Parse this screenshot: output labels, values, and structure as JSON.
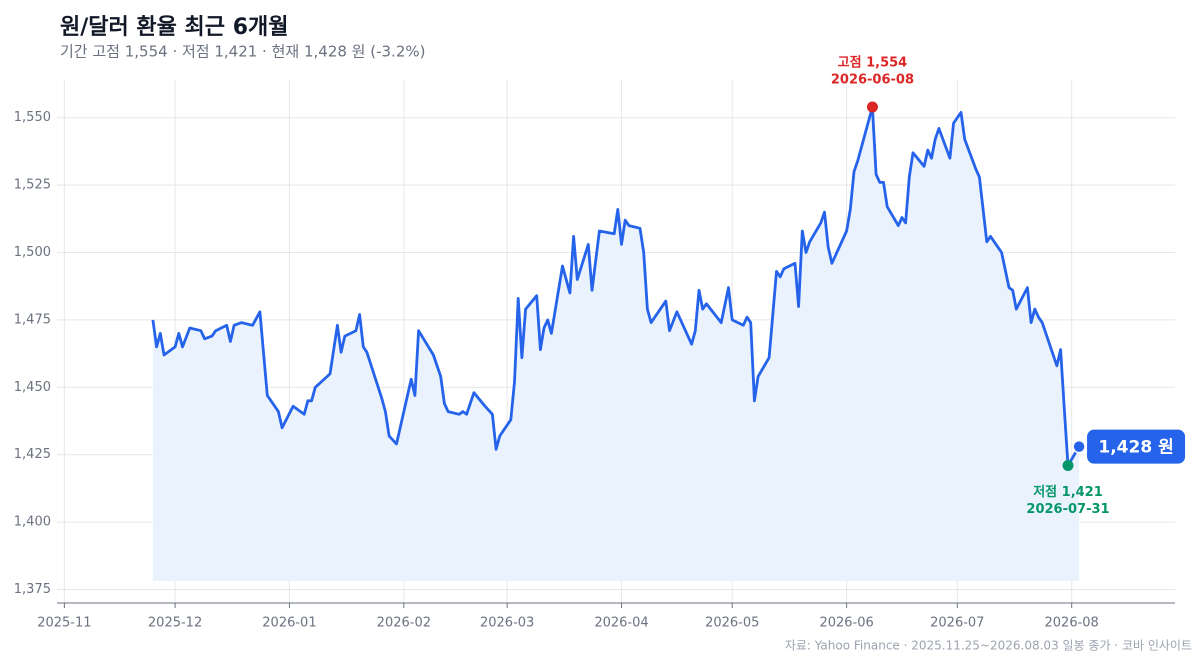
{
  "chart_data": {
    "type": "line",
    "title": "원/달러 환율 최근 6개월",
    "subtitle": "기간 고점 1,554 · 저점 1,421 · 현재 1,428 원 (-3.2%)",
    "source": "자료: Yahoo Finance · 2025.11.25~2026.08.03 일봉 종가 · 코바 인사이트",
    "color": "#2563eb",
    "fill_color": "#eaf2fd",
    "grid": true,
    "xlim": [
      "2025-10-30",
      "2026-08-29"
    ],
    "xticks": [
      "2025-11",
      "2025-12",
      "2026-01",
      "2026-02",
      "2026-03",
      "2026-04",
      "2026-05",
      "2026-06",
      "2026-07",
      "2026-08"
    ],
    "ylim": [
      1370,
      1564
    ],
    "yticks": [
      {
        "value": 1375,
        "label": "1,375"
      },
      {
        "value": 1400,
        "label": "1,400"
      },
      {
        "value": 1425,
        "label": "1,425"
      },
      {
        "value": 1450,
        "label": "1,450"
      },
      {
        "value": 1475,
        "label": "1,475"
      },
      {
        "value": 1500,
        "label": "1,500"
      },
      {
        "value": 1525,
        "label": "1,525"
      },
      {
        "value": 1550,
        "label": "1,550"
      }
    ],
    "x": [
      "2025-11-25",
      "2025-11-26",
      "2025-11-27",
      "2025-11-28",
      "2025-12-01",
      "2025-12-02",
      "2025-12-03",
      "2025-12-05",
      "2025-12-08",
      "2025-12-09",
      "2025-12-11",
      "2025-12-12",
      "2025-12-15",
      "2025-12-16",
      "2025-12-17",
      "2025-12-19",
      "2025-12-22",
      "2025-12-24",
      "2025-12-26",
      "2025-12-29",
      "2025-12-30",
      "2026-01-02",
      "2026-01-05",
      "2026-01-06",
      "2026-01-07",
      "2026-01-08",
      "2026-01-12",
      "2026-01-14",
      "2026-01-15",
      "2026-01-16",
      "2026-01-19",
      "2026-01-20",
      "2026-01-21",
      "2026-01-22",
      "2026-01-26",
      "2026-01-27",
      "2026-01-28",
      "2026-01-30",
      "2026-02-02",
      "2026-02-03",
      "2026-02-04",
      "2026-02-05",
      "2026-02-09",
      "2026-02-11",
      "2026-02-12",
      "2026-02-13",
      "2026-02-16",
      "2026-02-17",
      "2026-02-18",
      "2026-02-20",
      "2026-02-23",
      "2026-02-25",
      "2026-02-26",
      "2026-02-27",
      "2026-03-02",
      "2026-03-03",
      "2026-03-04",
      "2026-03-05",
      "2026-03-06",
      "2026-03-09",
      "2026-03-10",
      "2026-03-11",
      "2026-03-12",
      "2026-03-13",
      "2026-03-16",
      "2026-03-17",
      "2026-03-18",
      "2026-03-19",
      "2026-03-20",
      "2026-03-23",
      "2026-03-24",
      "2026-03-25",
      "2026-03-26",
      "2026-03-30",
      "2026-03-31",
      "2026-04-01",
      "2026-04-02",
      "2026-04-03",
      "2026-04-06",
      "2026-04-07",
      "2026-04-08",
      "2026-04-09",
      "2026-04-13",
      "2026-04-14",
      "2026-04-16",
      "2026-04-20",
      "2026-04-21",
      "2026-04-22",
      "2026-04-23",
      "2026-04-24",
      "2026-04-28",
      "2026-04-30",
      "2026-05-01",
      "2026-05-04",
      "2026-05-05",
      "2026-05-06",
      "2026-05-07",
      "2026-05-08",
      "2026-05-11",
      "2026-05-13",
      "2026-05-14",
      "2026-05-15",
      "2026-05-18",
      "2026-05-19",
      "2026-05-20",
      "2026-05-21",
      "2026-05-22",
      "2026-05-25",
      "2026-05-26",
      "2026-05-27",
      "2026-05-28",
      "2026-06-01",
      "2026-06-02",
      "2026-06-03",
      "2026-06-04",
      "2026-06-08",
      "2026-06-09",
      "2026-06-10",
      "2026-06-11",
      "2026-06-12",
      "2026-06-15",
      "2026-06-16",
      "2026-06-17",
      "2026-06-18",
      "2026-06-19",
      "2026-06-22",
      "2026-06-23",
      "2026-06-24",
      "2026-06-25",
      "2026-06-26",
      "2026-06-29",
      "2026-06-30",
      "2026-07-02",
      "2026-07-03",
      "2026-07-06",
      "2026-07-07",
      "2026-07-09",
      "2026-07-10",
      "2026-07-13",
      "2026-07-15",
      "2026-07-16",
      "2026-07-17",
      "2026-07-20",
      "2026-07-21",
      "2026-07-22",
      "2026-07-23",
      "2026-07-24",
      "2026-07-27",
      "2026-07-28",
      "2026-07-29",
      "2026-07-30",
      "2026-07-31",
      "2026-08-03"
    ],
    "values": [
      1475,
      1465,
      1470,
      1462,
      1465,
      1470,
      1465,
      1472,
      1471,
      1468,
      1469,
      1471,
      1473,
      1467,
      1473,
      1474,
      1473,
      1478,
      1447,
      1441,
      1435,
      1443,
      1440,
      1445,
      1445,
      1450,
      1455,
      1473,
      1463,
      1469,
      1471,
      1477,
      1465,
      1463,
      1446,
      1441,
      1432,
      1429,
      1447,
      1453,
      1447,
      1471,
      1462,
      1454,
      1444,
      1441,
      1440,
      1441,
      1440,
      1448,
      1443,
      1440,
      1427,
      1432,
      1438,
      1452,
      1483,
      1461,
      1479,
      1484,
      1464,
      1472,
      1475,
      1470,
      1495,
      1490,
      1485,
      1506,
      1490,
      1503,
      1486,
      1497,
      1508,
      1507,
      1516,
      1503,
      1512,
      1510,
      1509,
      1500,
      1479,
      1474,
      1482,
      1471,
      1478,
      1466,
      1471,
      1486,
      1479,
      1481,
      1474,
      1487,
      1475,
      1473,
      1476,
      1474,
      1445,
      1454,
      1461,
      1493,
      1491,
      1494,
      1496,
      1480,
      1508,
      1500,
      1504,
      1511,
      1515,
      1502,
      1496,
      1508,
      1516,
      1530,
      1534,
      1554,
      1529,
      1526,
      1526,
      1517,
      1510,
      1513,
      1511,
      1528,
      1537,
      1532,
      1538,
      1535,
      1542,
      1546,
      1535,
      1548,
      1552,
      1542,
      1531,
      1528,
      1504,
      1506,
      1500,
      1487,
      1486,
      1479,
      1487,
      1474,
      1479,
      1476,
      1474,
      1462,
      1458,
      1464,
      1442,
      1421,
      1428
    ],
    "high": {
      "label": "고점 1,554",
      "x": "2026-06-08",
      "value": 1554,
      "color": "#dc2626"
    },
    "low": {
      "label": "저점 1,421",
      "x": "2026-07-31",
      "value": 1421,
      "color": "#059669"
    },
    "last": {
      "label": "1,428 원",
      "x": "2026-08-03",
      "value": 1428,
      "color": "#2563eb"
    }
  }
}
